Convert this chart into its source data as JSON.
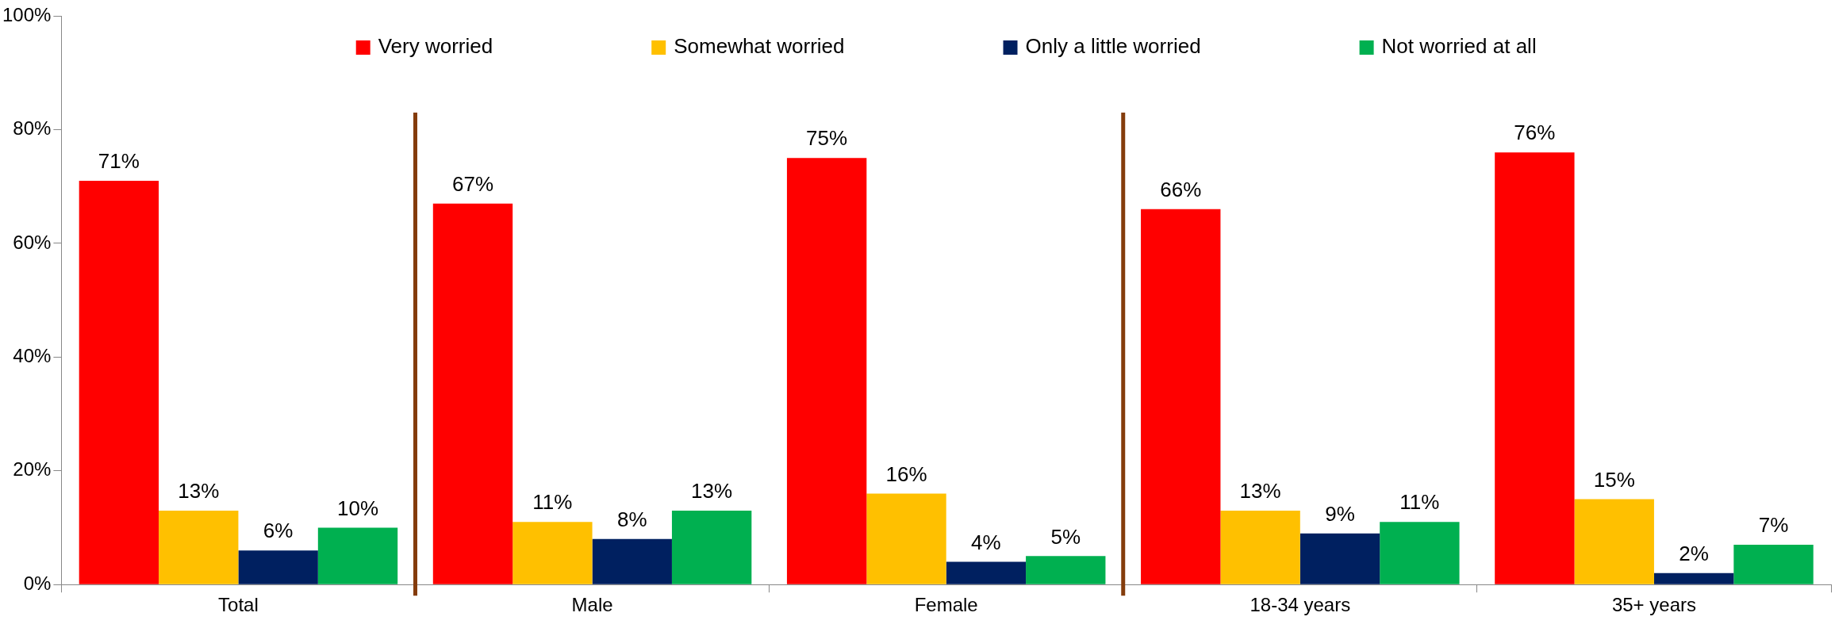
{
  "chart_data": {
    "type": "bar",
    "categories": [
      "Total",
      "Male",
      "Female",
      "18-34 years",
      "35+ years"
    ],
    "series": [
      {
        "name": "Very worried",
        "color": "#ff0000",
        "values": [
          71,
          67,
          75,
          66,
          76
        ],
        "value_labels": [
          "71%",
          "67%",
          "75%",
          "66%",
          "76%"
        ]
      },
      {
        "name": "Somewhat worried",
        "color": "#ffc000",
        "values": [
          13,
          11,
          16,
          13,
          15
        ],
        "value_labels": [
          "13%",
          "11%",
          "16%",
          "13%",
          "15%"
        ]
      },
      {
        "name": "Only a little worried",
        "color": "#002060",
        "values": [
          6,
          8,
          4,
          9,
          2
        ],
        "value_labels": [
          "6%",
          "8%",
          "4%",
          "9%",
          "2%"
        ]
      },
      {
        "name": "Not worried at all",
        "color": "#00b050",
        "values": [
          10,
          13,
          5,
          11,
          7
        ],
        "value_labels": [
          "10%",
          "13%",
          "5%",
          "11%",
          "7%"
        ]
      }
    ],
    "ylim": [
      0,
      100
    ],
    "yticks": [
      {
        "value": 0,
        "label": "0%"
      },
      {
        "value": 20,
        "label": "20%"
      },
      {
        "value": 40,
        "label": "40%"
      },
      {
        "value": 60,
        "label": "60%"
      },
      {
        "value": 80,
        "label": "80%"
      },
      {
        "value": 100,
        "label": "100%"
      }
    ],
    "grid": false,
    "legend": "top"
  }
}
